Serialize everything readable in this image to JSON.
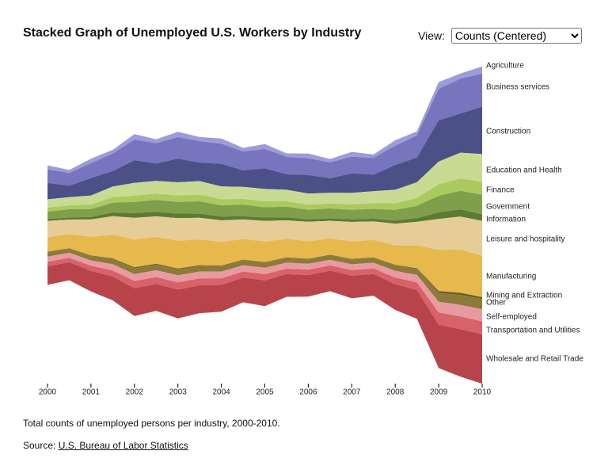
{
  "chart_data": {
    "type": "streamgraph",
    "title": "Stacked Graph of Unemployed U.S. Workers by Industry",
    "x": [
      2000,
      2000.5,
      2001,
      2001.5,
      2002,
      2002.5,
      2003,
      2003.5,
      2004,
      2004.5,
      2005,
      2005.5,
      2006,
      2006.5,
      2007,
      2007.5,
      2008,
      2008.5,
      2009,
      2009.5,
      2010
    ],
    "xlim": [
      2000,
      2010
    ],
    "xticks": [
      2000,
      2001,
      2002,
      2003,
      2004,
      2005,
      2006,
      2007,
      2008,
      2009,
      2010
    ],
    "series": [
      {
        "name": "Agriculture",
        "color": "#9d9bd9",
        "values": [
          200,
          150,
          220,
          180,
          260,
          190,
          260,
          200,
          250,
          180,
          240,
          170,
          230,
          160,
          230,
          170,
          260,
          200,
          330,
          250,
          350
        ]
      },
      {
        "name": "Business services",
        "color": "#7675bd",
        "values": [
          650,
          620,
          720,
          850,
          1000,
          980,
          1040,
          1040,
          980,
          910,
          940,
          850,
          810,
          780,
          810,
          810,
          940,
          1070,
          1530,
          1690,
          1600
        ]
      },
      {
        "name": "Construction",
        "color": "#4b5087",
        "values": [
          800,
          550,
          850,
          750,
          1100,
          850,
          1150,
          900,
          1100,
          800,
          1000,
          750,
          900,
          700,
          950,
          800,
          1200,
          1200,
          2000,
          1900,
          2300
        ]
      },
      {
        "name": "Education and Health",
        "color": "#c9da93",
        "values": [
          400,
          400,
          440,
          520,
          620,
          620,
          640,
          660,
          620,
          580,
          600,
          560,
          540,
          520,
          560,
          580,
          660,
          760,
          1100,
          1250,
          1350
        ]
      },
      {
        "name": "Finance",
        "color": "#abc95f",
        "values": [
          200,
          190,
          220,
          260,
          310,
          300,
          320,
          320,
          300,
          280,
          290,
          260,
          250,
          240,
          260,
          280,
          320,
          380,
          560,
          600,
          620
        ]
      },
      {
        "name": "Government",
        "color": "#7f9f4b",
        "values": [
          350,
          400,
          380,
          480,
          540,
          580,
          560,
          600,
          540,
          560,
          500,
          520,
          460,
          480,
          460,
          480,
          520,
          600,
          800,
          900,
          950
        ]
      },
      {
        "name": "Information",
        "color": "#5b7b33",
        "values": [
          100,
          100,
          120,
          180,
          230,
          220,
          220,
          200,
          180,
          160,
          160,
          140,
          120,
          120,
          130,
          130,
          150,
          180,
          320,
          350,
          320
        ]
      },
      {
        "name": "Leisure and hospitality",
        "color": "#e6cc96",
        "values": [
          800,
          700,
          850,
          900,
          1050,
          1000,
          1100,
          1050,
          1050,
          950,
          1000,
          900,
          950,
          850,
          950,
          900,
          1050,
          1150,
          1500,
          1600,
          1700
        ]
      },
      {
        "name": "Manufacturing",
        "color": "#e7b84c",
        "values": [
          700,
          700,
          900,
          1150,
          1350,
          1300,
          1350,
          1250,
          1150,
          1000,
          1000,
          900,
          850,
          800,
          850,
          850,
          950,
          1100,
          2000,
          2100,
          2000
        ]
      },
      {
        "name": "Mining and Extraction",
        "color": "#6e5f28",
        "values": [
          30,
          25,
          30,
          40,
          50,
          45,
          45,
          40,
          35,
          30,
          30,
          25,
          25,
          25,
          25,
          25,
          30,
          35,
          100,
          110,
          90
        ]
      },
      {
        "name": "Other",
        "color": "#8c7a3a",
        "values": [
          200,
          190,
          210,
          240,
          280,
          270,
          280,
          270,
          260,
          250,
          250,
          230,
          220,
          220,
          230,
          230,
          260,
          290,
          420,
          480,
          500
        ]
      },
      {
        "name": "Self-employed",
        "color": "#e79ba1",
        "values": [
          250,
          240,
          260,
          300,
          330,
          330,
          340,
          330,
          320,
          300,
          310,
          290,
          280,
          270,
          280,
          280,
          320,
          360,
          520,
          560,
          590
        ]
      },
      {
        "name": "Transportation and Utilities",
        "color": "#d9626a",
        "values": [
          220,
          210,
          250,
          300,
          350,
          340,
          350,
          340,
          320,
          290,
          300,
          270,
          260,
          250,
          270,
          270,
          320,
          370,
          600,
          620,
          620
        ]
      },
      {
        "name": "Wholesale and Retail Trade",
        "color": "#b8444b",
        "values": [
          900,
          880,
          1000,
          1150,
          1350,
          1300,
          1400,
          1350,
          1300,
          1200,
          1250,
          1100,
          1050,
          1000,
          1100,
          1050,
          1250,
          1400,
          2100,
          2300,
          2400
        ]
      }
    ]
  },
  "controls": {
    "view_label": "View:",
    "view_option": "Counts (Centered)"
  },
  "caption": "Total counts of unemployed persons per industry, 2000-2010.",
  "source_label": "Source:",
  "source_link": "U.S. Bureau of Labor Statistics"
}
